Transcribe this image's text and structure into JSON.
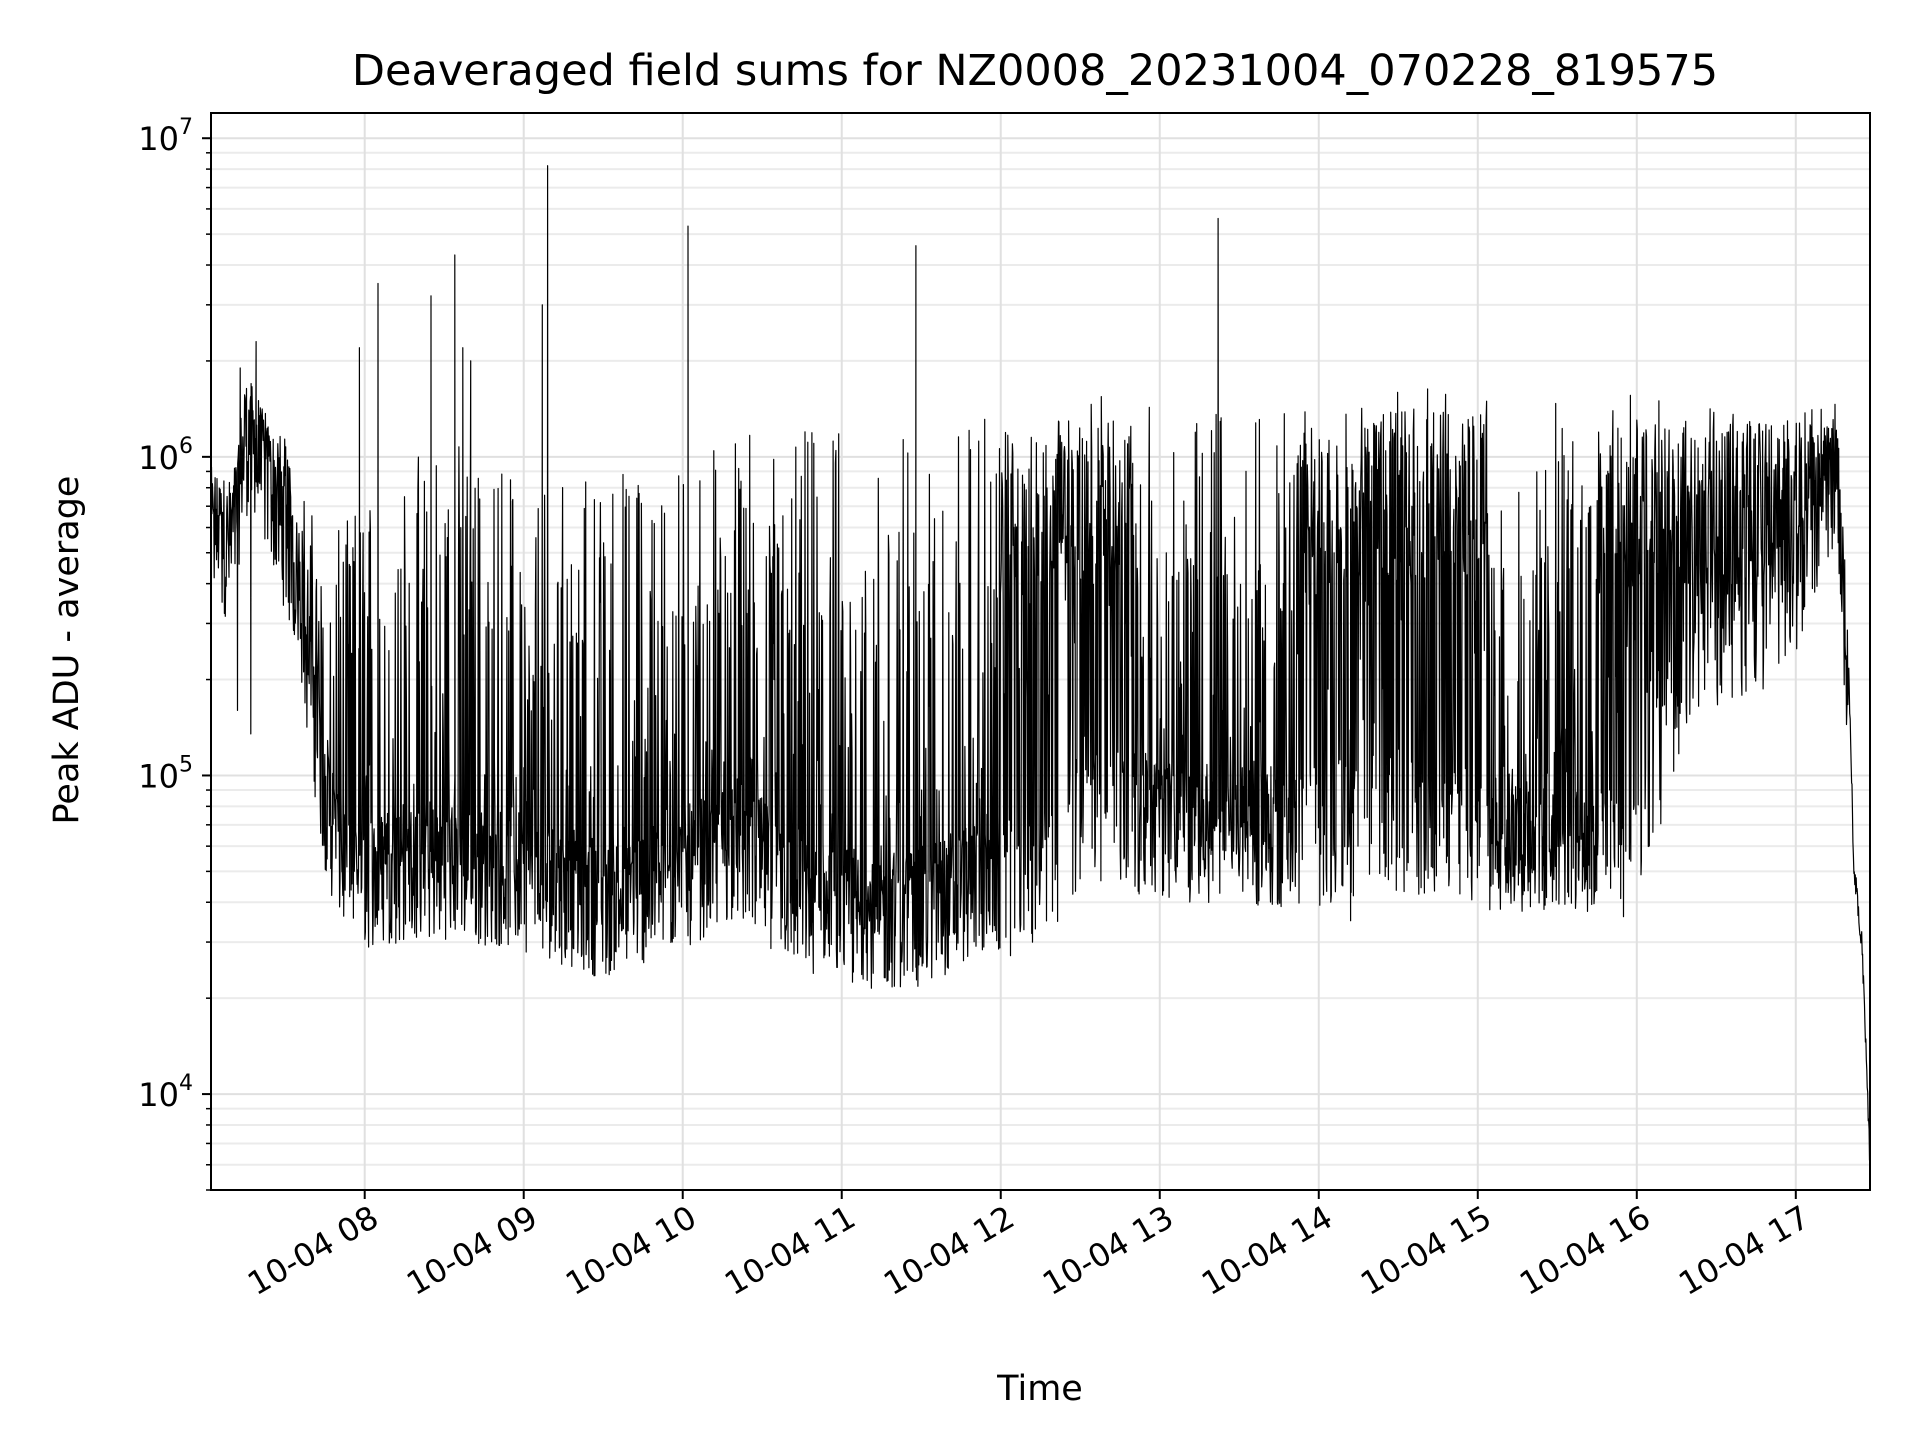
{
  "chart_data": {
    "type": "line",
    "title": "Deaveraged field sums for NZ0008_20231004_070228_819575",
    "xlabel": "Time",
    "ylabel": "Peak ADU - average",
    "yscale": "log",
    "ylim": [
      5000,
      12000000
    ],
    "xlim": [
      "2023-10-04 07:02",
      "2023-10-04 17:28"
    ],
    "grid": true,
    "x_ticks": [
      {
        "label": "10-04 08",
        "value": "2023-10-04 08:00"
      },
      {
        "label": "10-04 09",
        "value": "2023-10-04 09:00"
      },
      {
        "label": "10-04 10",
        "value": "2023-10-04 10:00"
      },
      {
        "label": "10-04 11",
        "value": "2023-10-04 11:00"
      },
      {
        "label": "10-04 12",
        "value": "2023-10-04 12:00"
      },
      {
        "label": "10-04 13",
        "value": "2023-10-04 13:00"
      },
      {
        "label": "10-04 14",
        "value": "2023-10-04 14:00"
      },
      {
        "label": "10-04 15",
        "value": "2023-10-04 15:00"
      },
      {
        "label": "10-04 16",
        "value": "2023-10-04 16:00"
      },
      {
        "label": "10-04 17",
        "value": "2023-10-04 17:00"
      }
    ],
    "y_ticks": [
      {
        "base": "10",
        "exp": "4",
        "value": 10000
      },
      {
        "base": "10",
        "exp": "5",
        "value": 100000
      },
      {
        "base": "10",
        "exp": "6",
        "value": 1000000
      },
      {
        "base": "10",
        "exp": "7",
        "value": 10000000
      }
    ],
    "series": [
      {
        "color": "#000000",
        "baseline": [
          [
            "2023-10-04 07:02",
            650000
          ],
          [
            "2023-10-04 07:10",
            600000
          ],
          [
            "2023-10-04 07:15",
            1300000
          ],
          [
            "2023-10-04 07:25",
            900000
          ],
          [
            "2023-10-04 07:35",
            450000
          ],
          [
            "2023-10-04 07:40",
            200000
          ],
          [
            "2023-10-04 07:45",
            100000
          ],
          [
            "2023-10-04 07:50",
            65000
          ],
          [
            "2023-10-04 08:00",
            55000
          ],
          [
            "2023-10-04 08:30",
            60000
          ],
          [
            "2023-10-04 09:00",
            55000
          ],
          [
            "2023-10-04 09:30",
            45000
          ],
          [
            "2023-10-04 10:00",
            55000
          ],
          [
            "2023-10-04 10:20",
            70000
          ],
          [
            "2023-10-04 10:40",
            50000
          ],
          [
            "2023-10-04 11:00",
            42000
          ],
          [
            "2023-10-04 11:30",
            42000
          ],
          [
            "2023-10-04 11:55",
            55000
          ],
          [
            "2023-10-04 12:05",
            50000
          ],
          [
            "2023-10-04 12:20",
            60000
          ],
          [
            "2023-10-04 12:30",
            90000
          ],
          [
            "2023-10-04 13:00",
            80000
          ],
          [
            "2023-10-04 13:30",
            75000
          ],
          [
            "2023-10-04 13:55",
            75000
          ],
          [
            "2023-10-04 14:10",
            80000
          ],
          [
            "2023-10-04 14:30",
            85000
          ],
          [
            "2023-10-04 15:00",
            70000
          ],
          [
            "2023-10-04 15:30",
            75000
          ],
          [
            "2023-10-04 15:50",
            70000
          ],
          [
            "2023-10-04 16:00",
            70000
          ],
          [
            "2023-10-04 16:20",
            300000
          ],
          [
            "2023-10-04 17:00",
            400000
          ],
          [
            "2023-10-04 17:10",
            700000
          ],
          [
            "2023-10-04 17:15",
            1100000
          ],
          [
            "2023-10-04 17:20",
            200000
          ],
          [
            "2023-10-04 17:22",
            50000
          ],
          [
            "2023-10-04 17:25",
            30000
          ],
          [
            "2023-10-04 17:28",
            6000
          ]
        ],
        "ceiling": [
          [
            "2023-10-04 07:02",
            900000
          ],
          [
            "2023-10-04 07:10",
            800000
          ],
          [
            "2023-10-04 07:15",
            1700000
          ],
          [
            "2023-10-04 07:30",
            1200000
          ],
          [
            "2023-10-04 07:45",
            500000
          ],
          [
            "2023-10-04 08:00",
            800000
          ],
          [
            "2023-10-04 08:30",
            1200000
          ],
          [
            "2023-10-04 09:00",
            1000000
          ],
          [
            "2023-10-04 09:30",
            900000
          ],
          [
            "2023-10-04 10:00",
            1100000
          ],
          [
            "2023-10-04 10:30",
            1200000
          ],
          [
            "2023-10-04 11:00",
            1300000
          ],
          [
            "2023-10-04 11:30",
            1300000
          ],
          [
            "2023-10-04 12:00",
            1400000
          ],
          [
            "2023-10-04 12:30",
            1600000
          ],
          [
            "2023-10-04 13:00",
            1500000
          ],
          [
            "2023-10-04 13:30",
            1500000
          ],
          [
            "2023-10-04 14:00",
            1500000
          ],
          [
            "2023-10-04 14:30",
            1700000
          ],
          [
            "2023-10-04 15:00",
            1600000
          ],
          [
            "2023-10-04 15:30",
            1500000
          ],
          [
            "2023-10-04 16:00",
            1600000
          ],
          [
            "2023-10-04 16:30",
            1500000
          ],
          [
            "2023-10-04 17:00",
            1400000
          ],
          [
            "2023-10-04 17:15",
            1600000
          ],
          [
            "2023-10-04 17:20",
            300000
          ],
          [
            "2023-10-04 17:28",
            7000
          ]
        ],
        "dense_segments": [
          [
            "2023-10-04 12:00",
            "2023-10-04 12:28",
            1200000
          ],
          [
            "2023-10-04 12:20",
            "2023-10-04 12:50",
            1300000
          ],
          [
            "2023-10-04 13:50",
            "2023-10-04 14:20",
            1200000
          ],
          [
            "2023-10-04 14:15",
            "2023-10-04 15:05",
            1400000
          ],
          [
            "2023-10-04 15:45",
            "2023-10-04 16:15",
            1300000
          ],
          [
            "2023-10-04 16:15",
            "2023-10-04 17:12",
            1300000
          ]
        ],
        "spikes": [
          [
            "2023-10-04 07:13",
            1900000
          ],
          [
            "2023-10-04 07:19",
            2300000
          ],
          [
            "2023-10-04 07:58",
            2200000
          ],
          [
            "2023-10-04 08:05",
            3500000
          ],
          [
            "2023-10-04 08:25",
            3200000
          ],
          [
            "2023-10-04 08:34",
            4300000
          ],
          [
            "2023-10-04 08:37",
            2200000
          ],
          [
            "2023-10-04 08:40",
            2000000
          ],
          [
            "2023-10-04 09:07",
            3000000
          ],
          [
            "2023-10-04 09:09",
            8200000
          ],
          [
            "2023-10-04 10:02",
            5300000
          ],
          [
            "2023-10-04 11:28",
            4600000
          ],
          [
            "2023-10-04 13:22",
            5600000
          ]
        ],
        "dips": [
          [
            "2023-10-04 07:12",
            160000
          ],
          [
            "2023-10-04 07:17",
            135000
          ],
          [
            "2023-10-04 11:28",
            25000
          ],
          [
            "2023-10-04 11:18",
            25000
          ],
          [
            "2023-10-04 14:12",
            35000
          ],
          [
            "2023-10-04 15:05",
            45000
          ],
          [
            "2023-10-04 15:25",
            38000
          ],
          [
            "2023-10-04 12:12",
            30000
          ]
        ]
      }
    ]
  }
}
